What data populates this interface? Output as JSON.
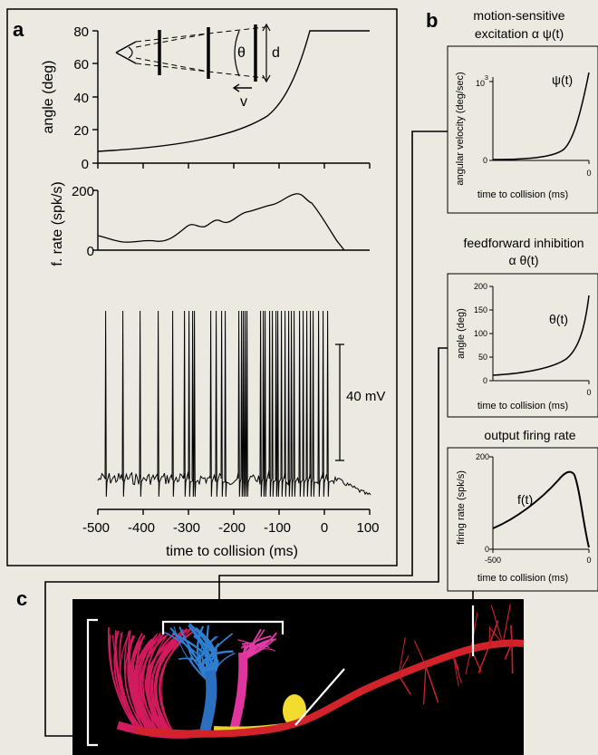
{
  "panels": {
    "a": "a",
    "b": "b",
    "c": "c"
  },
  "panel_a": {
    "angle_ylabel": "angle (deg)",
    "angle_yticks": [
      "0",
      "20",
      "40",
      "60",
      "80"
    ],
    "rate_ylabel": "f. rate (spk/s)",
    "rate_yticks": [
      "0",
      "200"
    ],
    "scale_bar_label": "40 mV",
    "xlabel": "time to collision (ms)",
    "xticks": [
      "-500",
      "-400",
      "-300",
      "-200",
      "-100",
      "0",
      "100"
    ],
    "inset": {
      "theta": "θ",
      "d": "d",
      "v": "v"
    }
  },
  "panel_b": {
    "excitation": {
      "title_line1": "motion-sensitive",
      "title_line2": "excitation  α ψ(t)",
      "ylabel": "angular velocity (deg/sec)",
      "ytick_top": "10",
      "ytick_top_exp": "3",
      "ytick_bottom": "0",
      "xtick": "0",
      "xlabel": "time to collision (ms)",
      "curve_label": "ψ(t)"
    },
    "inhibition": {
      "title_line1": "feedforward inhibition",
      "title_line2": "α θ(t)",
      "ylabel": "angle (deg)",
      "yticks": [
        "0",
        "50",
        "100",
        "150",
        "200"
      ],
      "xtick": "0",
      "xlabel": "time to collision (ms)",
      "curve_label": "θ(t)"
    },
    "output": {
      "title": "output firing rate",
      "ylabel": "firing rate (spk/s)",
      "ytick_top": "200",
      "ytick_bottom": "0",
      "xtick_left": "-500",
      "xtick_right": "0",
      "xlabel": "time to collision (ms)",
      "curve_label": "f(t)"
    }
  },
  "colors": {
    "background": "#ece9e1",
    "neuron_magenta": "#d21a5f",
    "dendrite_blue": "#2f7fd0",
    "neuron_pink": "#e33aa8",
    "axon_red": "#d2232a",
    "soma_yellow": "#f2dc2e"
  }
}
